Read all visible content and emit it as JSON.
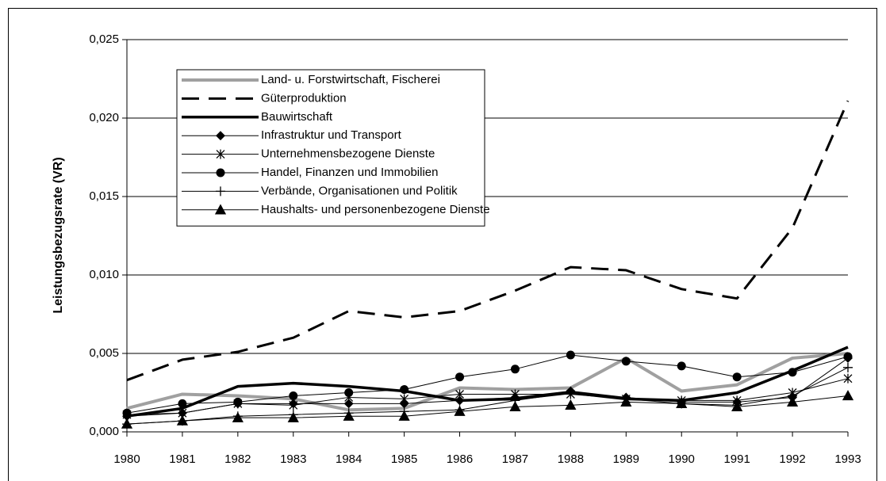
{
  "chart_data": {
    "type": "line",
    "y_label": "Leistungsbezugsrate (VR)",
    "categories": [
      "1980",
      "1981",
      "1982",
      "1983",
      "1984",
      "1985",
      "1986",
      "1987",
      "1988",
      "1989",
      "1990",
      "1991",
      "1992",
      "1993"
    ],
    "ylim": [
      0,
      0.025
    ],
    "yticks": [
      {
        "value": 0,
        "label": "0,000"
      },
      {
        "value": 0.005,
        "label": "0,005"
      },
      {
        "value": 0.01,
        "label": "0,010"
      },
      {
        "value": 0.015,
        "label": "0,015"
      },
      {
        "value": 0.02,
        "label": "0,020"
      },
      {
        "value": 0.025,
        "label": "0,025"
      }
    ],
    "grid": true,
    "legend": "upper left",
    "series": [
      {
        "name": "Land- u. Forstwirtschaft, Fischerei",
        "color": "#a0a0a0",
        "width": 4,
        "dash": "solid",
        "marker": "none",
        "values": [
          0.0015,
          0.0024,
          0.0023,
          0.0021,
          0.0014,
          0.0015,
          0.0028,
          0.0027,
          0.0028,
          0.0047,
          0.0026,
          0.003,
          0.0047,
          0.005
        ]
      },
      {
        "name": "Güterproduktion",
        "color": "#000000",
        "width": 3,
        "dash": "dashed",
        "marker": "none",
        "values": [
          0.0033,
          0.0046,
          0.0051,
          0.006,
          0.0077,
          0.0073,
          0.0077,
          0.009,
          0.0105,
          0.0103,
          0.0091,
          0.0085,
          0.013,
          0.0211
        ]
      },
      {
        "name": "Bauwirtschaft",
        "color": "#000000",
        "width": 3.5,
        "dash": "solid",
        "marker": "none",
        "values": [
          0.001,
          0.0015,
          0.0029,
          0.0031,
          0.0029,
          0.0026,
          0.002,
          0.0021,
          0.0025,
          0.0021,
          0.002,
          0.0025,
          0.0039,
          0.0054
        ]
      },
      {
        "name": "Infrastruktur und Transport",
        "color": "#000000",
        "width": 1,
        "dash": "solid",
        "marker": "diamond",
        "values": [
          0.001,
          0.0012,
          0.0018,
          0.0018,
          0.0018,
          0.0018,
          0.002,
          0.0022,
          0.0026,
          0.0022,
          0.0019,
          0.0019,
          0.0022,
          0.0047
        ]
      },
      {
        "name": "Unternehmensbezogene Dienste",
        "color": "#000000",
        "width": 1,
        "dash": "solid",
        "marker": "star",
        "values": [
          0.0011,
          0.0012,
          0.0018,
          0.0017,
          0.0022,
          0.0021,
          0.0024,
          0.0024,
          0.0024,
          0.0021,
          0.002,
          0.002,
          0.0025,
          0.0034
        ]
      },
      {
        "name": "Handel, Finanzen und Immobilien",
        "color": "#000000",
        "width": 1,
        "dash": "solid",
        "marker": "circle",
        "values": [
          0.0012,
          0.0018,
          0.0019,
          0.0023,
          0.0025,
          0.0027,
          0.0035,
          0.004,
          0.0049,
          0.0045,
          0.0042,
          0.0035,
          0.0038,
          0.0048
        ]
      },
      {
        "name": "Verbände, Organisationen und Politik",
        "color": "#000000",
        "width": 1,
        "dash": "solid",
        "marker": "plus",
        "values": [
          0.0005,
          0.0007,
          0.001,
          0.0011,
          0.0012,
          0.0013,
          0.0014,
          0.002,
          0.0025,
          0.0021,
          0.0018,
          0.0017,
          0.0023,
          0.0041
        ]
      },
      {
        "name": "Haushalts- und personenbezogene Dienste",
        "color": "#000000",
        "width": 1,
        "dash": "solid",
        "marker": "triangle",
        "values": [
          0.0005,
          0.0007,
          0.0009,
          0.0009,
          0.001,
          0.001,
          0.0013,
          0.0016,
          0.0017,
          0.0019,
          0.0018,
          0.0016,
          0.0019,
          0.0023
        ]
      }
    ]
  }
}
